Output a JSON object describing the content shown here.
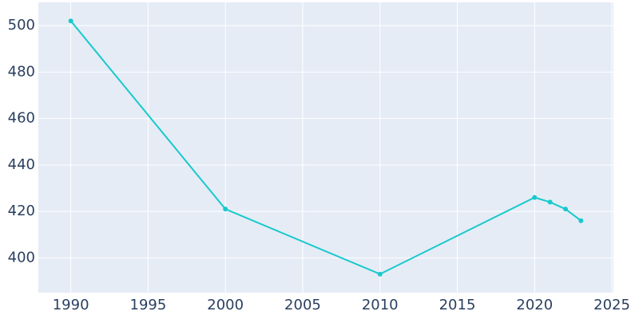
{
  "chart_data": {
    "type": "line",
    "x": [
      1990,
      2000,
      2010,
      2020,
      2021,
      2022,
      2023
    ],
    "values": [
      502,
      421,
      393,
      426,
      424,
      421,
      416
    ],
    "color": "#17c9cc",
    "xlim": [
      1987.9,
      2025.1
    ],
    "xticks": [
      1990,
      1995,
      2000,
      2005,
      2010,
      2015,
      2020,
      2025
    ],
    "ylim": [
      385,
      510
    ],
    "yticks": [
      400,
      420,
      440,
      460,
      480,
      500
    ],
    "grid": true
  }
}
